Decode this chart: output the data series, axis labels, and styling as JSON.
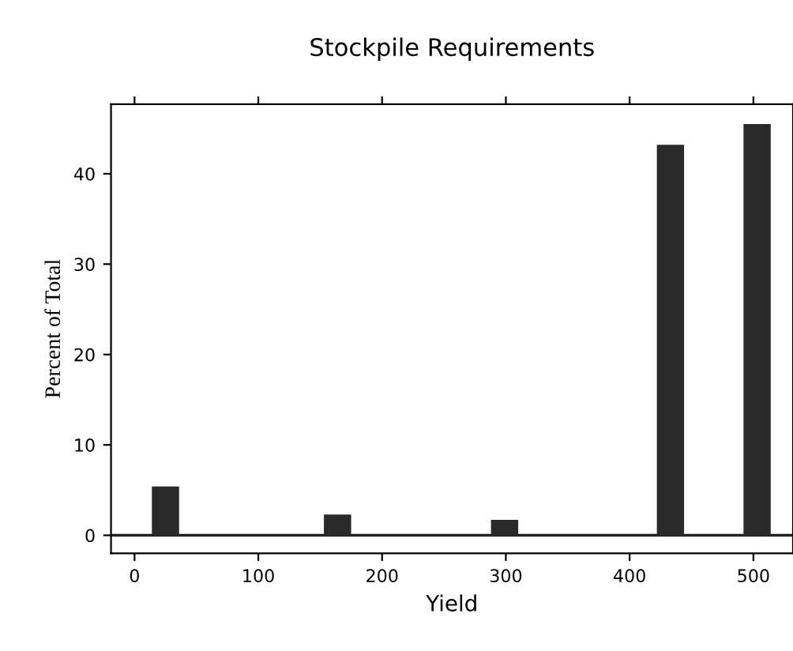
{
  "chart_data": {
    "type": "bar",
    "title": "Stockpile Requirements",
    "xlabel": "Yield",
    "ylabel": "Percent of Total",
    "x": [
      25,
      164,
      299,
      433,
      503
    ],
    "values": [
      5.4,
      2.3,
      1.7,
      43.2,
      45.5
    ],
    "color": "#2a2a2a",
    "xlim": [
      -19,
      532
    ],
    "xticks": [
      0,
      100,
      200,
      300,
      400,
      500
    ],
    "ylim": [
      -2,
      47.7
    ],
    "yticks": [
      0,
      10,
      20,
      30,
      40
    ],
    "ref_lines": [
      {
        "axis": "y",
        "value": 0,
        "color": "#222222"
      }
    ],
    "grid": false
  }
}
